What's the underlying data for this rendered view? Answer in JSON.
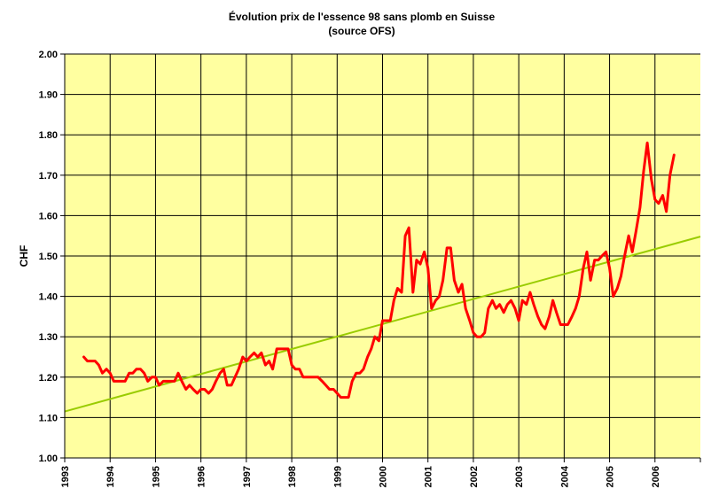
{
  "chart_data": {
    "type": "line",
    "title": "Évolution prix de l'essence 98 sans plomb en Suisse",
    "subtitle": "(source OFS)",
    "xlabel": "",
    "ylabel": "CHF",
    "xlim": [
      1993,
      2007
    ],
    "ylim": [
      1.0,
      2.0
    ],
    "y_ticks": [
      "1.00",
      "1.10",
      "1.20",
      "1.30",
      "1.40",
      "1.50",
      "1.60",
      "1.70",
      "1.80",
      "1.90",
      "2.00"
    ],
    "x_ticks": [
      "1993",
      "1994",
      "1995",
      "1996",
      "1997",
      "1998",
      "1999",
      "2000",
      "2001",
      "2002",
      "2003",
      "2004",
      "2005",
      "2006"
    ],
    "grid": "horizontal and vertical",
    "legend": "none",
    "colors": {
      "plot_background": "#ffffa0",
      "price_line": "#ff0000",
      "trend_line": "#99cc00",
      "grid": "#000000"
    },
    "series": [
      {
        "kind": "price",
        "points": [
          [
            1993.42,
            1.25
          ],
          [
            1993.5,
            1.24
          ],
          [
            1993.58,
            1.24
          ],
          [
            1993.67,
            1.24
          ],
          [
            1993.75,
            1.23
          ],
          [
            1993.83,
            1.21
          ],
          [
            1993.92,
            1.22
          ],
          [
            1994.0,
            1.21
          ],
          [
            1994.08,
            1.19
          ],
          [
            1994.17,
            1.19
          ],
          [
            1994.25,
            1.19
          ],
          [
            1994.33,
            1.19
          ],
          [
            1994.42,
            1.21
          ],
          [
            1994.5,
            1.21
          ],
          [
            1994.58,
            1.22
          ],
          [
            1994.67,
            1.22
          ],
          [
            1994.75,
            1.21
          ],
          [
            1994.83,
            1.19
          ],
          [
            1994.92,
            1.2
          ],
          [
            1995.0,
            1.2
          ],
          [
            1995.08,
            1.18
          ],
          [
            1995.17,
            1.19
          ],
          [
            1995.25,
            1.19
          ],
          [
            1995.33,
            1.19
          ],
          [
            1995.42,
            1.19
          ],
          [
            1995.5,
            1.21
          ],
          [
            1995.58,
            1.19
          ],
          [
            1995.67,
            1.17
          ],
          [
            1995.75,
            1.18
          ],
          [
            1995.83,
            1.17
          ],
          [
            1995.92,
            1.16
          ],
          [
            1996.0,
            1.17
          ],
          [
            1996.08,
            1.17
          ],
          [
            1996.17,
            1.16
          ],
          [
            1996.25,
            1.17
          ],
          [
            1996.33,
            1.19
          ],
          [
            1996.42,
            1.21
          ],
          [
            1996.5,
            1.22
          ],
          [
            1996.58,
            1.18
          ],
          [
            1996.67,
            1.18
          ],
          [
            1996.75,
            1.2
          ],
          [
            1996.83,
            1.22
          ],
          [
            1996.92,
            1.25
          ],
          [
            1997.0,
            1.24
          ],
          [
            1997.08,
            1.25
          ],
          [
            1997.17,
            1.26
          ],
          [
            1997.25,
            1.25
          ],
          [
            1997.33,
            1.26
          ],
          [
            1997.42,
            1.23
          ],
          [
            1997.5,
            1.24
          ],
          [
            1997.58,
            1.22
          ],
          [
            1997.67,
            1.27
          ],
          [
            1997.75,
            1.27
          ],
          [
            1997.83,
            1.27
          ],
          [
            1997.92,
            1.27
          ],
          [
            1998.0,
            1.23
          ],
          [
            1998.08,
            1.22
          ],
          [
            1998.17,
            1.22
          ],
          [
            1998.25,
            1.2
          ],
          [
            1998.33,
            1.2
          ],
          [
            1998.42,
            1.2
          ],
          [
            1998.5,
            1.2
          ],
          [
            1998.58,
            1.2
          ],
          [
            1998.67,
            1.19
          ],
          [
            1998.75,
            1.18
          ],
          [
            1998.83,
            1.17
          ],
          [
            1998.92,
            1.17
          ],
          [
            1999.0,
            1.16
          ],
          [
            1999.08,
            1.15
          ],
          [
            1999.17,
            1.15
          ],
          [
            1999.25,
            1.15
          ],
          [
            1999.33,
            1.19
          ],
          [
            1999.42,
            1.21
          ],
          [
            1999.5,
            1.21
          ],
          [
            1999.58,
            1.22
          ],
          [
            1999.67,
            1.25
          ],
          [
            1999.75,
            1.27
          ],
          [
            1999.83,
            1.3
          ],
          [
            1999.92,
            1.29
          ],
          [
            2000.0,
            1.34
          ],
          [
            2000.08,
            1.34
          ],
          [
            2000.17,
            1.34
          ],
          [
            2000.25,
            1.39
          ],
          [
            2000.33,
            1.42
          ],
          [
            2000.42,
            1.41
          ],
          [
            2000.5,
            1.55
          ],
          [
            2000.58,
            1.57
          ],
          [
            2000.67,
            1.41
          ],
          [
            2000.75,
            1.49
          ],
          [
            2000.83,
            1.48
          ],
          [
            2000.92,
            1.51
          ],
          [
            2001.0,
            1.47
          ],
          [
            2001.08,
            1.37
          ],
          [
            2001.17,
            1.39
          ],
          [
            2001.25,
            1.4
          ],
          [
            2001.33,
            1.44
          ],
          [
            2001.42,
            1.52
          ],
          [
            2001.5,
            1.52
          ],
          [
            2001.58,
            1.44
          ],
          [
            2001.67,
            1.41
          ],
          [
            2001.75,
            1.43
          ],
          [
            2001.83,
            1.37
          ],
          [
            2001.92,
            1.34
          ],
          [
            2002.0,
            1.31
          ],
          [
            2002.08,
            1.3
          ],
          [
            2002.17,
            1.3
          ],
          [
            2002.25,
            1.31
          ],
          [
            2002.33,
            1.37
          ],
          [
            2002.42,
            1.39
          ],
          [
            2002.5,
            1.37
          ],
          [
            2002.58,
            1.38
          ],
          [
            2002.67,
            1.36
          ],
          [
            2002.75,
            1.38
          ],
          [
            2002.83,
            1.39
          ],
          [
            2002.92,
            1.37
          ],
          [
            2003.0,
            1.34
          ],
          [
            2003.08,
            1.39
          ],
          [
            2003.17,
            1.38
          ],
          [
            2003.25,
            1.41
          ],
          [
            2003.33,
            1.38
          ],
          [
            2003.42,
            1.35
          ],
          [
            2003.5,
            1.33
          ],
          [
            2003.58,
            1.32
          ],
          [
            2003.67,
            1.35
          ],
          [
            2003.75,
            1.39
          ],
          [
            2003.83,
            1.36
          ],
          [
            2003.92,
            1.33
          ],
          [
            2004.0,
            1.33
          ],
          [
            2004.08,
            1.33
          ],
          [
            2004.17,
            1.35
          ],
          [
            2004.25,
            1.37
          ],
          [
            2004.33,
            1.4
          ],
          [
            2004.42,
            1.47
          ],
          [
            2004.5,
            1.51
          ],
          [
            2004.58,
            1.44
          ],
          [
            2004.67,
            1.49
          ],
          [
            2004.75,
            1.49
          ],
          [
            2004.83,
            1.5
          ],
          [
            2004.92,
            1.51
          ],
          [
            2005.0,
            1.47
          ],
          [
            2005.08,
            1.4
          ],
          [
            2005.17,
            1.42
          ],
          [
            2005.25,
            1.45
          ],
          [
            2005.33,
            1.5
          ],
          [
            2005.42,
            1.55
          ],
          [
            2005.5,
            1.51
          ],
          [
            2005.58,
            1.56
          ],
          [
            2005.67,
            1.62
          ],
          [
            2005.75,
            1.71
          ],
          [
            2005.83,
            1.78
          ],
          [
            2005.92,
            1.69
          ],
          [
            2006.0,
            1.64
          ],
          [
            2006.08,
            1.63
          ],
          [
            2006.17,
            1.65
          ],
          [
            2006.25,
            1.61
          ],
          [
            2006.33,
            1.7
          ],
          [
            2006.42,
            1.75
          ]
        ]
      },
      {
        "kind": "linear-trend",
        "points": [
          [
            1993.0,
            1.115
          ],
          [
            2007.0,
            1.548
          ]
        ]
      }
    ]
  }
}
